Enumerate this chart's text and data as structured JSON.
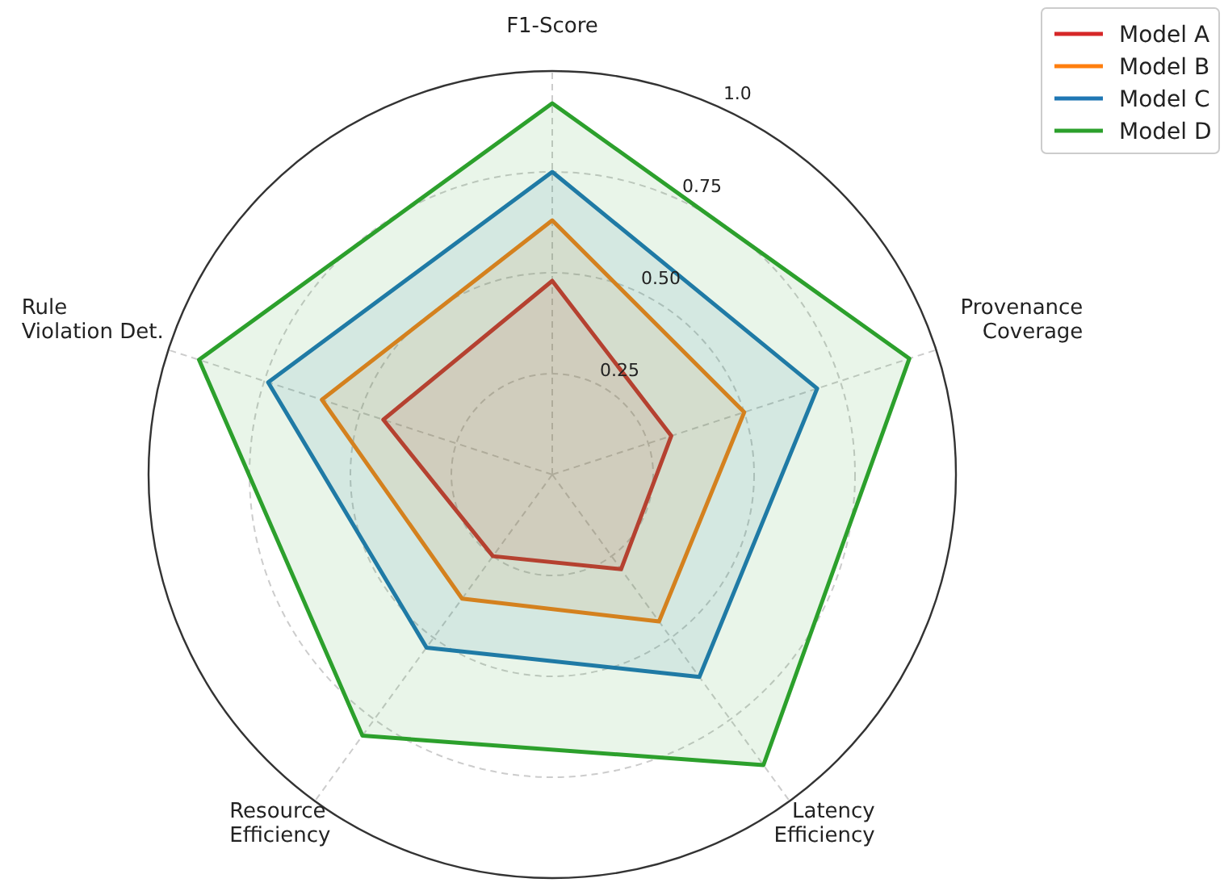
{
  "chart_data": {
    "type": "radar",
    "categories": [
      "F1-Score",
      "Provenance\nCoverage",
      "Latency\nEfficiency",
      "Resource\nEfficiency",
      "Rule\nViolation Det."
    ],
    "series": [
      {
        "name": "Model A",
        "color": "#d62728",
        "values": [
          0.48,
          0.31,
          0.29,
          0.25,
          0.44
        ]
      },
      {
        "name": "Model B",
        "color": "#ff7f0e",
        "values": [
          0.63,
          0.5,
          0.45,
          0.38,
          0.6
        ]
      },
      {
        "name": "Model C",
        "color": "#1f77b4",
        "values": [
          0.75,
          0.69,
          0.62,
          0.53,
          0.74
        ]
      },
      {
        "name": "Model D",
        "color": "#2ca02c",
        "values": [
          0.92,
          0.93,
          0.89,
          0.8,
          0.92
        ]
      }
    ],
    "ylim": [
      0,
      1
    ],
    "yticks": [
      {
        "value": 0.25,
        "label": "0.25"
      },
      {
        "value": 0.5,
        "label": "0.50"
      },
      {
        "value": 0.75,
        "label": "0.75"
      },
      {
        "value": 1,
        "label": "1.0"
      }
    ],
    "grid": true,
    "legend": "top right"
  }
}
